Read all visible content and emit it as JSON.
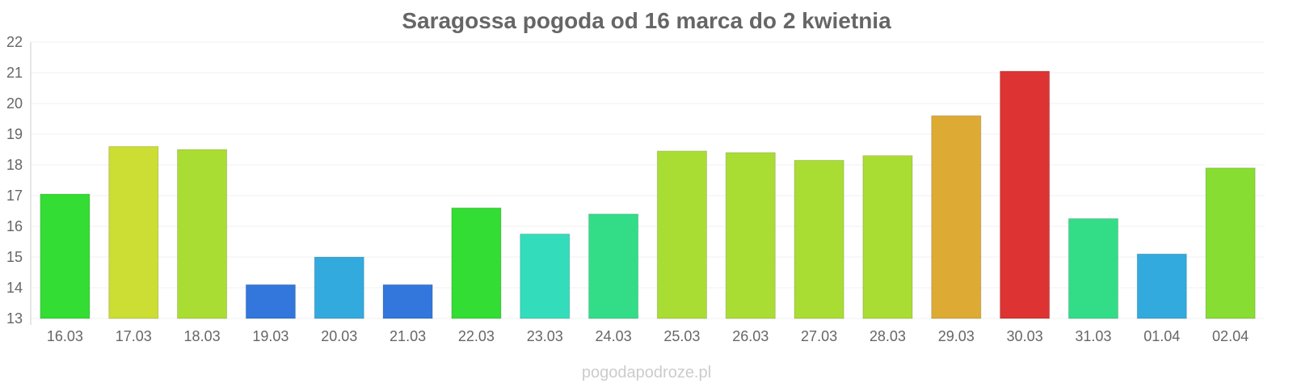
{
  "chart_data": {
    "type": "bar",
    "title": "Saragossa pogoda od 16 marca do 2 kwietnia",
    "xlabel": "",
    "ylabel": "",
    "categories": [
      "16.03",
      "17.03",
      "18.03",
      "19.03",
      "20.03",
      "21.03",
      "22.03",
      "23.03",
      "24.03",
      "25.03",
      "26.03",
      "27.03",
      "28.03",
      "29.03",
      "30.03",
      "31.03",
      "01.04",
      "02.04"
    ],
    "values": [
      17.05,
      18.6,
      18.5,
      14.1,
      15.0,
      14.1,
      16.6,
      15.75,
      16.4,
      18.45,
      18.4,
      18.15,
      18.3,
      19.6,
      21.05,
      16.25,
      15.1,
      17.9
    ],
    "bar_colors": [
      "#33dd33",
      "#ccdd33",
      "#aadd33",
      "#3377dd",
      "#33aadd",
      "#3377dd",
      "#33dd33",
      "#33ddbb",
      "#33dd88",
      "#aadd33",
      "#aadd33",
      "#aadd33",
      "#aadd33",
      "#ddaa33",
      "#dd3333",
      "#33dd88",
      "#33aadd",
      "#88dd33"
    ],
    "ylim": [
      13,
      22
    ],
    "yticks": [
      13,
      14,
      15,
      16,
      17,
      18,
      19,
      20,
      21,
      22
    ],
    "grid": true,
    "legend": "none"
  },
  "watermark": "pogodapodroze.pl"
}
